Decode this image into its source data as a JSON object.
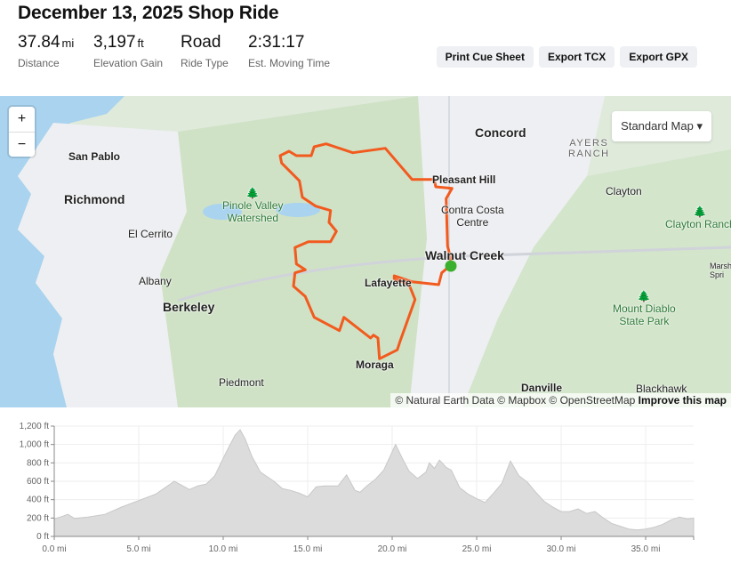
{
  "header": {
    "title": "December 13, 2025 Shop Ride",
    "stats": [
      {
        "value": "37.84",
        "unit": "mi",
        "label": "Distance"
      },
      {
        "value": "3,197",
        "unit": "ft",
        "label": "Elevation Gain"
      },
      {
        "value": "Road",
        "unit": "",
        "label": "Ride Type"
      },
      {
        "value": "2:31:17",
        "unit": "",
        "label": "Est. Moving Time"
      }
    ],
    "buttons": {
      "print": "Print Cue Sheet",
      "tcx": "Export TCX",
      "gpx": "Export GPX"
    }
  },
  "map": {
    "zoom_in": "+",
    "zoom_out": "−",
    "style_select": "Standard Map",
    "places": {
      "concord": "Concord",
      "ayers": "AYERS",
      "ranch": "RANCH",
      "san_pablo": "San Pablo",
      "richmond": "Richmond",
      "pinole1": "Pinole Valley",
      "pinole2": "Watershed",
      "pleasant_hill": "Pleasant Hill",
      "contra1": "Contra Costa",
      "contra2": "Centre",
      "clayton": "Clayton",
      "clayton_ranch": "Clayton Ranch",
      "el_cerrito": "El Cerrito",
      "walnut_creek": "Walnut Creek",
      "albany": "Albany",
      "lafayette": "Lafayette",
      "berkeley": "Berkeley",
      "diablo1": "Mount Diablo",
      "diablo2": "State Park",
      "marsh": "Marsh",
      "spri": "Spri",
      "moraga": "Moraga",
      "piedmont": "Piedmont",
      "danville": "Danville",
      "blackhawk": "Blackhawk"
    },
    "attribution": "© Natural Earth Data © Mapbox © OpenStreetMap",
    "improve": "Improve this map",
    "route_color": "#f25a1e",
    "start_color": "#3bb02e"
  },
  "chart_data": {
    "type": "area",
    "xlabel": "",
    "ylabel": "",
    "xlim": [
      0,
      37.84
    ],
    "ylim": [
      0,
      1200
    ],
    "x_ticks": [
      "0.0 mi",
      "5.0 mi",
      "10.0 mi",
      "15.0 mi",
      "20.0 mi",
      "25.0 mi",
      "30.0 mi",
      "35.0 mi"
    ],
    "x_tick_values": [
      0,
      5,
      10,
      15,
      20,
      25,
      30,
      35
    ],
    "y_ticks": [
      "0 ft",
      "200 ft",
      "400 ft",
      "600 ft",
      "800 ft",
      "1,000 ft",
      "1,200 ft"
    ],
    "y_tick_values": [
      0,
      200,
      400,
      600,
      800,
      1000,
      1200
    ],
    "grid": true,
    "fill_color": "#dcdcdc",
    "x": [
      0,
      0.5,
      0.8,
      1.2,
      2,
      3,
      4,
      5,
      6,
      6.8,
      7.1,
      7.5,
      8,
      8.5,
      9,
      9.5,
      10,
      10.3,
      10.7,
      11,
      11.3,
      11.7,
      12.2,
      13,
      13.5,
      14,
      14.5,
      15,
      15.5,
      16,
      16.8,
      17.3,
      17.8,
      18.1,
      18.5,
      19,
      19.5,
      20.2,
      20.6,
      21,
      21.5,
      22,
      22.2,
      22.5,
      22.8,
      23.2,
      23.5,
      24,
      24.5,
      25,
      25.5,
      26,
      26.5,
      27,
      27.5,
      28,
      28.5,
      29,
      29.5,
      30,
      30.5,
      31,
      31.5,
      32,
      32.5,
      33,
      33.5,
      34,
      34.5,
      35,
      35.5,
      36,
      36.5,
      37,
      37.5,
      37.84
    ],
    "y": [
      190,
      220,
      240,
      195,
      210,
      240,
      320,
      390,
      460,
      560,
      600,
      560,
      510,
      550,
      570,
      660,
      850,
      960,
      1100,
      1160,
      1060,
      870,
      700,
      600,
      520,
      500,
      470,
      430,
      540,
      550,
      550,
      670,
      500,
      480,
      550,
      620,
      720,
      1000,
      850,
      710,
      630,
      700,
      800,
      740,
      830,
      750,
      720,
      530,
      460,
      410,
      370,
      470,
      580,
      820,
      660,
      590,
      480,
      380,
      320,
      270,
      270,
      300,
      250,
      270,
      200,
      140,
      110,
      80,
      70,
      80,
      100,
      130,
      180,
      210,
      190,
      200
    ]
  }
}
